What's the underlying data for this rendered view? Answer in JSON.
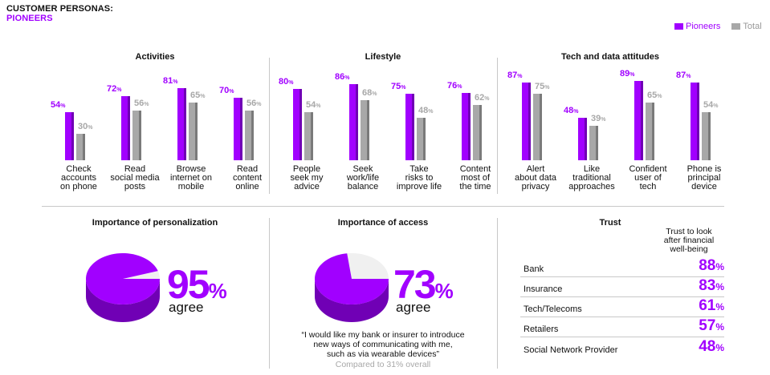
{
  "title": {
    "line1": "CUSTOMER PERSONAS:",
    "line2": "PIONEERS"
  },
  "colors": {
    "pioneers": "#a100ff",
    "total": "#a8a8a8",
    "pioneers_dark": "#7000b5",
    "total_dark": "#7a7a7a"
  },
  "legend": {
    "pioneers": "Pioneers",
    "total": "Total"
  },
  "sections": {
    "activities": "Activities",
    "lifestyle": "Lifestyle",
    "tech": "Tech and data attitudes",
    "personalization": "Importance of personalization",
    "access": "Importance of access",
    "trust": "Trust"
  },
  "chart_data": {
    "type": "bar",
    "title": "Customer personas: Pioneers",
    "series_names": [
      "Pioneers",
      "Total"
    ],
    "unit": "%",
    "ylim": [
      0,
      100
    ],
    "groups": [
      {
        "name": "Activities",
        "categories": [
          {
            "label": [
              "Check",
              "accounts",
              "on phone"
            ],
            "pioneers": 54,
            "total": 30
          },
          {
            "label": [
              "Read",
              "social media",
              "posts"
            ],
            "pioneers": 72,
            "total": 56
          },
          {
            "label": [
              "Browse",
              "internet on",
              "mobile"
            ],
            "pioneers": 81,
            "total": 65
          },
          {
            "label": [
              "Read",
              "content",
              "online"
            ],
            "pioneers": 70,
            "total": 56
          }
        ]
      },
      {
        "name": "Lifestyle",
        "categories": [
          {
            "label": [
              "People",
              "seek my",
              "advice"
            ],
            "pioneers": 80,
            "total": 54
          },
          {
            "label": [
              "Seek",
              "work/life",
              "balance"
            ],
            "pioneers": 86,
            "total": 68
          },
          {
            "label": [
              "Take",
              "risks to",
              "improve life"
            ],
            "pioneers": 75,
            "total": 48
          },
          {
            "label": [
              "Content",
              "most of",
              "the time"
            ],
            "pioneers": 76,
            "total": 62
          }
        ]
      },
      {
        "name": "Tech and data attitudes",
        "categories": [
          {
            "label": [
              "Alert",
              "about data",
              "privacy"
            ],
            "pioneers": 87,
            "total": 75
          },
          {
            "label": [
              "Like",
              "traditional",
              "approaches"
            ],
            "pioneers": 48,
            "total": 39
          },
          {
            "label": [
              "Confident",
              "user of",
              "tech"
            ],
            "pioneers": 89,
            "total": 65
          },
          {
            "label": [
              "Phone is",
              "principal",
              "device"
            ],
            "pioneers": 87,
            "total": 54
          }
        ]
      }
    ]
  },
  "personalization": {
    "value": "95",
    "unit": "%",
    "label": "agree",
    "fraction": 0.95
  },
  "access": {
    "value": "73",
    "unit": "%",
    "label": "agree",
    "fraction": 0.73,
    "quote_lines": [
      "“I would like my bank or insurer to introduce",
      "new ways of communicating with me,",
      "such as via wearable devices”"
    ],
    "compare": "Compared to 31% overall"
  },
  "trust": {
    "header_lines": [
      "Trust to look",
      "after financial",
      "well-being"
    ],
    "rows": [
      {
        "label": "Bank",
        "value": "88",
        "unit": "%"
      },
      {
        "label": "Insurance",
        "value": "83",
        "unit": "%"
      },
      {
        "label": "Tech/Telecoms",
        "value": "61",
        "unit": "%"
      },
      {
        "label": "Retailers",
        "value": "57",
        "unit": "%"
      },
      {
        "label": "Social Network Provider",
        "value": "48",
        "unit": "%"
      }
    ]
  }
}
